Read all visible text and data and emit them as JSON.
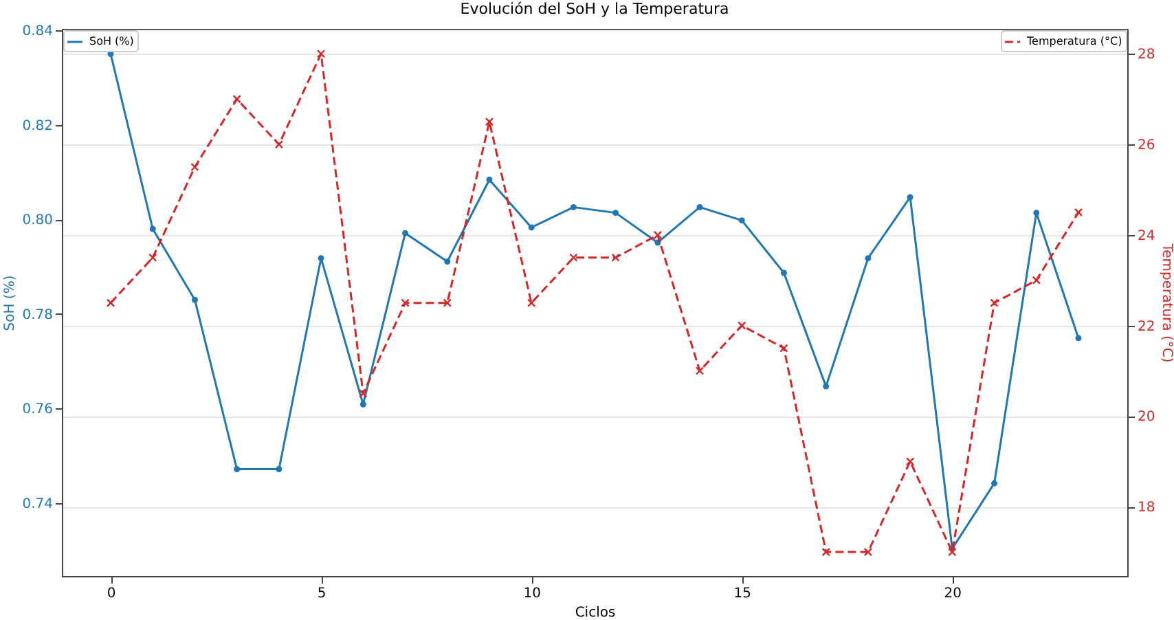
{
  "chart_data": {
    "type": "line",
    "title": "Evolución del SoH y la Temperatura",
    "xlabel": "Ciclos",
    "ylabel": "SoH (%)",
    "y2label": "Temperatura (°C)",
    "x": [
      0,
      1,
      2,
      3,
      4,
      5,
      6,
      7,
      8,
      9,
      10,
      11,
      12,
      13,
      14,
      15,
      16,
      17,
      18,
      19,
      20,
      21,
      22,
      23
    ],
    "xlim": [
      -1.16,
      24.16
    ],
    "xticks": [
      0,
      5,
      10,
      15,
      20
    ],
    "ylim": [
      0.7246,
      0.8403
    ],
    "yticks": [
      0.74,
      0.76,
      0.78,
      {
        "value": 0.8,
        "label": "0.80"
      },
      0.82,
      0.84
    ],
    "y2lim": [
      16.47,
      28.55
    ],
    "y2ticks": [
      18,
      20,
      22,
      24,
      26,
      28
    ],
    "grid": "y2",
    "legend": "top",
    "series": [
      {
        "name": "SoH (%)",
        "color": "#1f77b4",
        "marker": "circle",
        "line_style": "solid",
        "values": [
          0.835,
          0.798,
          0.783,
          0.7472,
          0.7472,
          0.7918,
          0.7609,
          0.7971,
          0.7911,
          0.8084,
          0.7983,
          0.8026,
          0.8014,
          0.7951,
          0.8026,
          0.7998,
          0.7887,
          0.7647,
          0.7918,
          0.8047,
          0.7304,
          0.7442,
          0.8014,
          0.7749
        ]
      },
      {
        "name": "Temperatura (°C)",
        "color": "#d62728",
        "marker": "cross",
        "line_style": "dashed",
        "axis": "y2",
        "values": [
          22.5,
          23.5,
          25.5,
          27,
          26,
          28,
          20.5,
          22.5,
          22.5,
          26.5,
          22.5,
          23.5,
          23.5,
          24,
          21,
          22,
          21.5,
          17,
          17,
          19,
          17,
          22.5,
          23,
          24.5
        ]
      }
    ]
  }
}
